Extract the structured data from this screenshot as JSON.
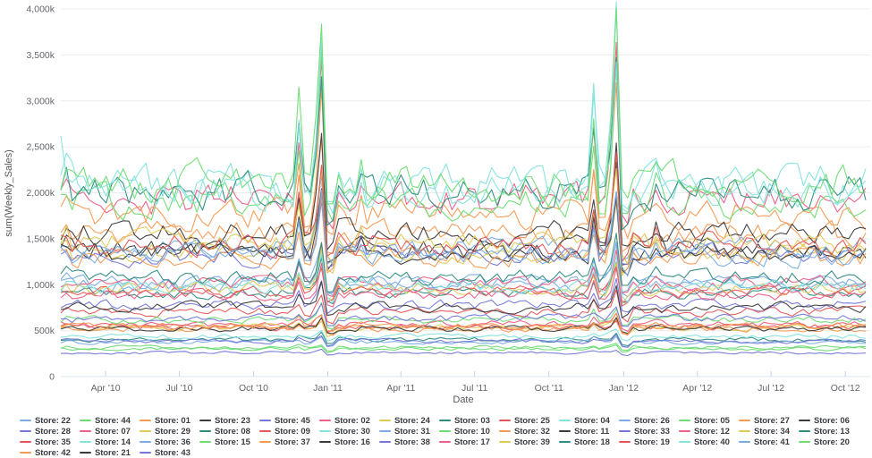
{
  "layout_colors": {
    "background": "#ffffff",
    "grid": "#ececec",
    "zero_line": "#dbe5f1",
    "tick": "#c4d4e8",
    "axis_text": "#63666b",
    "legend_text": "#3b3e43"
  },
  "palette": {
    "light_blue": "#79ade1",
    "purple_blue": "#7478d8",
    "red": "#e65758",
    "orange": "#f59a53",
    "light_green": "#6edc74",
    "pink_red": "#ec5f86",
    "light_cyan": "#84e3dc",
    "black": "#3b3b3b",
    "yellow": "#e0ca55",
    "teal": "#2f8c81"
  },
  "chart_data": {
    "type": "line",
    "title": "",
    "x_axis": {
      "label": "Date",
      "start": "2010-02-05",
      "end": "2012-10-26",
      "weeks": 143,
      "ticks": [
        {
          "label": "Apr '10",
          "week": 7.9
        },
        {
          "label": "Jul '10",
          "week": 20.9
        },
        {
          "label": "Oct '10",
          "week": 34.0
        },
        {
          "label": "Jan '11",
          "week": 47.1
        },
        {
          "label": "Apr '11",
          "week": 60.0
        },
        {
          "label": "Jul '11",
          "week": 73.0
        },
        {
          "label": "Oct '11",
          "week": 86.1
        },
        {
          "label": "Jan '12",
          "week": 99.3
        },
        {
          "label": "Apr '12",
          "week": 112.3
        },
        {
          "label": "Jul '12",
          "week": 125.3
        },
        {
          "label": "Oct '12",
          "week": 138.4
        }
      ]
    },
    "y_axis": {
      "label": "sum(Weekly_Sales)",
      "unit": "thousands",
      "min_k": 0,
      "max_k": 4000,
      "ticks": [
        "0",
        "500k",
        "1,000k",
        "1,500k",
        "2,000k",
        "2,500k",
        "3,000k",
        "3,500k",
        "4,000k"
      ]
    },
    "events": {
      "thanksgiving_weeks": [
        42,
        94
      ],
      "pre_christmas_weeks": [
        45,
        97
      ],
      "christmas_weeks": [
        46,
        98
      ],
      "post_holiday_weeks": [
        47,
        48,
        99,
        100
      ],
      "super_bowl_weeks": [
        1,
        53,
        105
      ],
      "peak_christmas_k": 3800,
      "peak_thanksgiving_k": 3000,
      "factors": {
        "thanksgiving": 0.42,
        "pre_christmas": 0.26,
        "christmas": 0.82,
        "post_holiday_dip": 0.88,
        "super_bowl": 0.09
      }
    },
    "grid": "horizontal-only",
    "legend_position": "bottom",
    "series": [
      {
        "label": "Store: 22",
        "color": "#79ade1",
        "avg_weekly_sales_k": 1028
      },
      {
        "label": "Store: 44",
        "color": "#6edc74",
        "avg_weekly_sales_k": 302
      },
      {
        "label": "Store: 01",
        "color": "#f59a53",
        "avg_weekly_sales_k": 1555
      },
      {
        "label": "Store: 23",
        "color": "#3b3b3b",
        "avg_weekly_sales_k": 1389
      },
      {
        "label": "Store: 45",
        "color": "#7478d8",
        "avg_weekly_sales_k": 786
      },
      {
        "label": "Store: 02",
        "color": "#ec5f86",
        "avg_weekly_sales_k": 1925
      },
      {
        "label": "Store: 24",
        "color": "#e0ca55",
        "avg_weekly_sales_k": 1356
      },
      {
        "label": "Store: 03",
        "color": "#2f8c81",
        "avg_weekly_sales_k": 402
      },
      {
        "label": "Store: 25",
        "color": "#e65758",
        "avg_weekly_sales_k": 707
      },
      {
        "label": "Store: 04",
        "color": "#84e3dc",
        "avg_weekly_sales_k": 2095
      },
      {
        "label": "Store: 26",
        "color": "#79ade1",
        "avg_weekly_sales_k": 1002
      },
      {
        "label": "Store: 05",
        "color": "#6edc74",
        "avg_weekly_sales_k": 318
      },
      {
        "label": "Store: 27",
        "color": "#f59a53",
        "avg_weekly_sales_k": 1775
      },
      {
        "label": "Store: 06",
        "color": "#3b3b3b",
        "avg_weekly_sales_k": 1564
      },
      {
        "label": "Store: 28",
        "color": "#7478d8",
        "avg_weekly_sales_k": 1323
      },
      {
        "label": "Store: 07",
        "color": "#ec5f86",
        "avg_weekly_sales_k": 571
      },
      {
        "label": "Store: 29",
        "color": "#e0ca55",
        "avg_weekly_sales_k": 539
      },
      {
        "label": "Store: 08",
        "color": "#2f8c81",
        "avg_weekly_sales_k": 909
      },
      {
        "label": "Store: 09",
        "color": "#e65758",
        "avg_weekly_sales_k": 543
      },
      {
        "label": "Store: 30",
        "color": "#84e3dc",
        "avg_weekly_sales_k": 438
      },
      {
        "label": "Store: 31",
        "color": "#79ade1",
        "avg_weekly_sales_k": 1395
      },
      {
        "label": "Store: 10",
        "color": "#6edc74",
        "avg_weekly_sales_k": 1899
      },
      {
        "label": "Store: 32",
        "color": "#f59a53",
        "avg_weekly_sales_k": 1292
      },
      {
        "label": "Store: 11",
        "color": "#3b3b3b",
        "avg_weekly_sales_k": 1356
      },
      {
        "label": "Store: 33",
        "color": "#7478d8",
        "avg_weekly_sales_k": 259
      },
      {
        "label": "Store: 12",
        "color": "#ec5f86",
        "avg_weekly_sales_k": 1009
      },
      {
        "label": "Store: 34",
        "color": "#e0ca55",
        "avg_weekly_sales_k": 954
      },
      {
        "label": "Store: 13",
        "color": "#2f8c81",
        "avg_weekly_sales_k": 2003
      },
      {
        "label": "Store: 35",
        "color": "#e65758",
        "avg_weekly_sales_k": 920
      },
      {
        "label": "Store: 14",
        "color": "#84e3dc",
        "avg_weekly_sales_k": 2020,
        "start_spike_k": 2620
      },
      {
        "label": "Store: 36",
        "color": "#79ade1",
        "avg_weekly_sales_k": 374
      },
      {
        "label": "Store: 15",
        "color": "#6edc74",
        "avg_weekly_sales_k": 623
      },
      {
        "label": "Store: 37",
        "color": "#f59a53",
        "avg_weekly_sales_k": 518
      },
      {
        "label": "Store: 16",
        "color": "#3b3b3b",
        "avg_weekly_sales_k": 519
      },
      {
        "label": "Store: 38",
        "color": "#7478d8",
        "avg_weekly_sales_k": 385
      },
      {
        "label": "Store: 17",
        "color": "#ec5f86",
        "avg_weekly_sales_k": 897
      },
      {
        "label": "Store: 39",
        "color": "#e0ca55",
        "avg_weekly_sales_k": 1450
      },
      {
        "label": "Store: 18",
        "color": "#2f8c81",
        "avg_weekly_sales_k": 1084
      },
      {
        "label": "Store: 19",
        "color": "#e65758",
        "avg_weekly_sales_k": 1444
      },
      {
        "label": "Store: 40",
        "color": "#84e3dc",
        "avg_weekly_sales_k": 967
      },
      {
        "label": "Store: 41",
        "color": "#79ade1",
        "avg_weekly_sales_k": 1317
      },
      {
        "label": "Store: 20",
        "color": "#6edc74",
        "avg_weekly_sales_k": 2107
      },
      {
        "label": "Store: 42",
        "color": "#f59a53",
        "avg_weekly_sales_k": 557
      },
      {
        "label": "Store: 21",
        "color": "#3b3b3b",
        "avg_weekly_sales_k": 757
      },
      {
        "label": "Store: 43",
        "color": "#7478d8",
        "avg_weekly_sales_k": 633
      }
    ]
  }
}
